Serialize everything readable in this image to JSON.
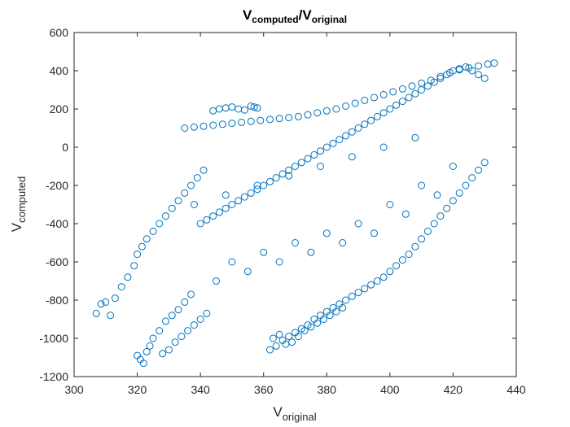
{
  "chart_data": {
    "type": "scatter",
    "title": {
      "main": "V",
      "sub1": "computed",
      "sep": "/V",
      "sub2": "original"
    },
    "xlabel": {
      "main": "V",
      "sub": "original"
    },
    "ylabel": {
      "main": "V",
      "sub": "computed"
    },
    "xlim": [
      300,
      440
    ],
    "ylim": [
      -1200,
      600
    ],
    "xticks": [
      300,
      320,
      340,
      360,
      380,
      400,
      420,
      440
    ],
    "yticks": [
      -1200,
      -1000,
      -800,
      -600,
      -400,
      -200,
      0,
      200,
      400,
      600
    ],
    "grid": false,
    "marker": "circle",
    "color": "#0072BD",
    "series": [
      {
        "x": [
          307.0,
          308.5,
          310.0,
          311.5,
          313.0,
          315.0,
          317.0,
          319.0,
          320.0,
          321.0,
          322.0,
          323.0,
          324.0,
          325.0,
          327.0,
          329.0,
          331.0,
          333.0,
          335.0,
          337.0,
          320.0,
          321.5,
          323.0,
          325.0,
          327.0,
          329.0,
          331.0,
          333.0,
          335.0,
          337.0,
          339.0,
          341.0,
          328.0,
          330.0,
          332.0,
          334.0,
          336.0,
          338.0,
          340.0,
          342.0,
          335.0,
          338.0,
          341.0,
          344.0,
          347.0,
          350.0,
          353.0,
          356.0,
          359.0,
          362.0,
          365.0,
          368.0,
          371.0,
          374.0,
          377.0,
          380.0,
          383.0,
          386.0,
          389.0,
          392.0,
          395.0,
          398.0,
          401.0,
          404.0,
          407.0,
          410.0,
          413.0,
          416.0,
          419.0,
          422.0,
          425.0,
          428.0,
          431.0,
          433.0,
          344.0,
          346.0,
          348.0,
          350.0,
          352.0,
          354.0,
          356.0,
          357.0,
          358.0,
          340.0,
          342.0,
          344.0,
          346.0,
          348.0,
          350.0,
          352.0,
          354.0,
          356.0,
          358.0,
          360.0,
          362.0,
          364.0,
          366.0,
          368.0,
          370.0,
          372.0,
          374.0,
          376.0,
          378.0,
          380.0,
          382.0,
          384.0,
          386.0,
          388.0,
          390.0,
          392.0,
          394.0,
          396.0,
          398.0,
          400.0,
          402.0,
          404.0,
          406.0,
          408.0,
          410.0,
          412.0,
          414.0,
          416.0,
          418.0,
          420.0,
          422.0,
          424.0,
          426.0,
          428.0,
          430.0,
          350.0,
          360.0,
          370.0,
          380.0,
          390.0,
          400.0,
          410.0,
          420.0,
          345.0,
          355.0,
          365.0,
          375.0,
          385.0,
          395.0,
          405.0,
          415.0,
          338.0,
          348.0,
          358.0,
          368.0,
          378.0,
          388.0,
          398.0,
          408.0,
          362.0,
          364.0,
          366.0,
          368.0,
          370.0,
          372.0,
          374.0,
          376.0,
          378.0,
          380.0,
          382.0,
          384.0,
          386.0,
          388.0,
          390.0,
          392.0,
          394.0,
          396.0,
          398.0,
          400.0,
          402.0,
          404.0,
          406.0,
          408.0,
          410.0,
          412.0,
          414.0,
          416.0,
          418.0,
          420.0,
          422.0,
          424.0,
          426.0,
          428.0,
          430.0,
          363.0,
          365.0,
          367.0,
          369.0,
          371.0,
          373.0,
          375.0,
          377.0,
          379.0,
          381.0,
          383.0,
          385.0
        ],
        "y": [
          -870,
          -820,
          -810,
          -880,
          -790,
          -730,
          -680,
          -620,
          -1090,
          -1110,
          -1130,
          -1070,
          -1040,
          -1000,
          -960,
          -910,
          -880,
          -850,
          -810,
          -770,
          -560,
          -520,
          -480,
          -440,
          -400,
          -360,
          -320,
          -280,
          -240,
          -200,
          -160,
          -120,
          -1080,
          -1060,
          -1020,
          -990,
          -960,
          -930,
          -900,
          -870,
          100,
          105,
          110,
          115,
          120,
          125,
          130,
          135,
          140,
          145,
          150,
          155,
          160,
          170,
          180,
          190,
          200,
          215,
          230,
          245,
          260,
          275,
          290,
          305,
          320,
          335,
          350,
          370,
          390,
          405,
          415,
          425,
          435,
          440,
          190,
          200,
          205,
          210,
          200,
          195,
          215,
          210,
          205,
          -400,
          -380,
          -360,
          -340,
          -320,
          -300,
          -280,
          -260,
          -240,
          -220,
          -200,
          -180,
          -160,
          -140,
          -120,
          -100,
          -80,
          -60,
          -40,
          -20,
          0,
          20,
          40,
          60,
          80,
          100,
          120,
          140,
          160,
          180,
          200,
          220,
          240,
          260,
          280,
          300,
          320,
          340,
          360,
          380,
          400,
          410,
          420,
          400,
          380,
          360,
          -600,
          -550,
          -500,
          -450,
          -400,
          -300,
          -200,
          -100,
          -700,
          -650,
          -600,
          -550,
          -500,
          -450,
          -350,
          -250,
          -300,
          -250,
          -200,
          -150,
          -100,
          -50,
          0,
          50,
          -1060,
          -1040,
          -1010,
          -990,
          -970,
          -950,
          -930,
          -900,
          -880,
          -860,
          -840,
          -820,
          -800,
          -780,
          -760,
          -740,
          -720,
          -700,
          -680,
          -650,
          -620,
          -590,
          -560,
          -520,
          -480,
          -440,
          -400,
          -360,
          -320,
          -280,
          -240,
          -200,
          -160,
          -120,
          -80,
          -1000,
          -980,
          -1030,
          -1020,
          -990,
          -960,
          -940,
          -920,
          -900,
          -880,
          -860,
          -840
        ]
      }
    ]
  }
}
